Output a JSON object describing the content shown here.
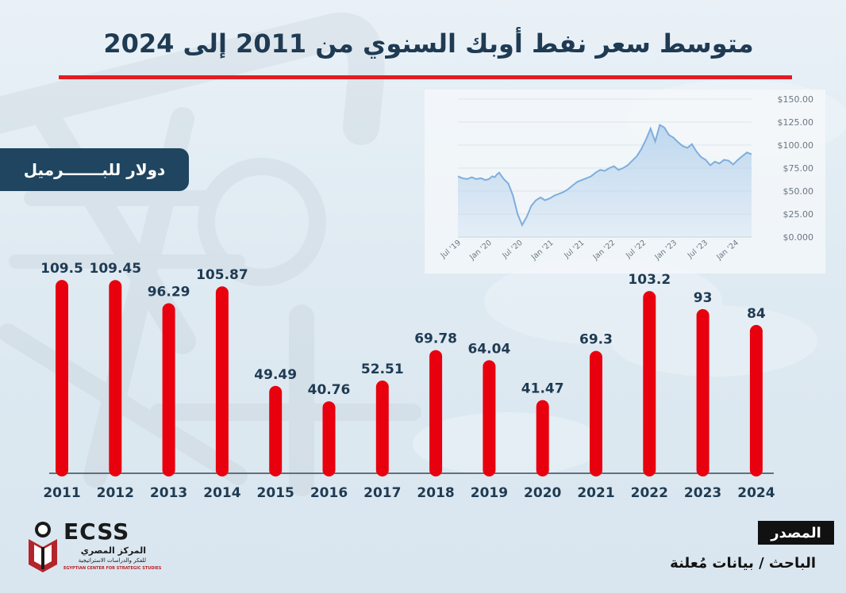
{
  "title": "متوسط سعر نفط أوبك السنوي من 2011 إلى 2024",
  "unit_badge": "دولار للبـــــــرميل",
  "source": {
    "label": "المصدر",
    "text": "الباحث / بيانات مُعلنة"
  },
  "logo": {
    "abbr": "ECSS",
    "name_ar": "المركز المصري",
    "tagline_ar": "للفكر والدراسات الاستراتيجية",
    "name_en": "EGYPTIAN CENTER FOR STRATEGIC STUDIES"
  },
  "colors": {
    "bar": "#e8000e",
    "title": "#1f3b53",
    "rule": "#e21d24",
    "badge": "#1f4560",
    "inset_line": "#7eaedc",
    "inset_fill": "#bcd6ee"
  },
  "chart_data": [
    {
      "type": "bar",
      "categories": [
        "2011",
        "2012",
        "2013",
        "2014",
        "2015",
        "2016",
        "2017",
        "2018",
        "2019",
        "2020",
        "2021",
        "2022",
        "2023",
        "2024"
      ],
      "values": [
        109.5,
        109.45,
        96.29,
        105.87,
        49.49,
        40.76,
        52.51,
        69.78,
        64.04,
        41.47,
        69.3,
        103.2,
        93,
        84
      ],
      "labels": [
        "109.5",
        "109.45",
        "96.29",
        "105.87",
        "49.49",
        "40.76",
        "52.51",
        "69.78",
        "64.04",
        "41.47",
        "69.3",
        "103.2",
        "93",
        "84"
      ],
      "ylim": [
        0,
        110
      ],
      "grid": false,
      "legend": "none"
    },
    {
      "type": "area",
      "x_ticks": [
        "Jul '19",
        "Jan '20",
        "Jul '20",
        "Jan '21",
        "Jul '21",
        "Jan '22",
        "Jul '22",
        "Jan '23",
        "Jul '23",
        "Jan '24"
      ],
      "y_ticks": [
        "$150.00",
        "$125.00",
        "$100.00",
        "$75.00",
        "$50.00",
        "$25.00",
        "$0.000"
      ],
      "ylim": [
        0,
        150
      ],
      "grid": true,
      "x": [
        0,
        0.2,
        0.4,
        0.6,
        0.8,
        1.0,
        1.2,
        1.35,
        1.5,
        1.6,
        1.7,
        1.8,
        2.0,
        2.2,
        2.4,
        2.6,
        2.8,
        3.0,
        3.2,
        3.4,
        3.6,
        3.8,
        4.0,
        4.2,
        4.4,
        4.6,
        4.8,
        5.0,
        5.2,
        5.4,
        5.6,
        5.8,
        6.0,
        6.2,
        6.4,
        6.6,
        6.8,
        7.0,
        7.2,
        7.4,
        7.6,
        7.8,
        8.0,
        8.2,
        8.4,
        8.6,
        8.8,
        9.0,
        9.2,
        9.4,
        9.6,
        9.8,
        10.0,
        10.2,
        10.4,
        10.6,
        10.8,
        11.0,
        11.2,
        11.4,
        11.6,
        11.8,
        12.0,
        12.2,
        12.4,
        12.6,
        12.8
      ],
      "values": [
        66,
        64,
        63,
        65,
        63,
        64,
        62,
        63,
        66,
        65,
        68,
        70,
        63,
        58,
        45,
        25,
        13,
        22,
        34,
        40,
        43,
        40,
        42,
        45,
        47,
        49,
        52,
        56,
        60,
        62,
        64,
        66,
        70,
        73,
        72,
        75,
        77,
        73,
        75,
        78,
        83,
        88,
        96,
        106,
        118,
        104,
        122,
        119,
        111,
        108,
        103,
        99,
        97,
        101,
        93,
        87,
        84,
        78,
        82,
        80,
        84,
        83,
        79,
        84,
        88,
        92,
        90
      ]
    }
  ]
}
